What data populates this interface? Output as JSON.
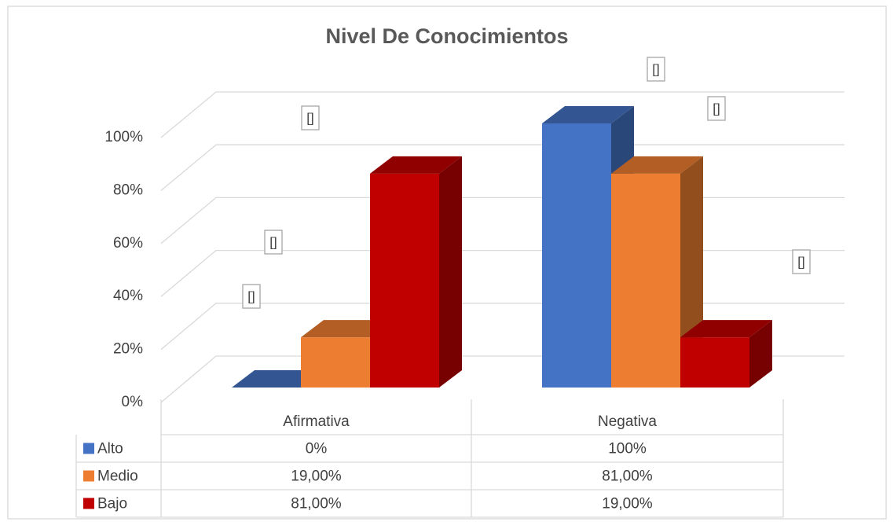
{
  "chart_data": {
    "type": "bar3d",
    "title": "Nivel De Conocimientos",
    "categories": [
      "Afirmativa",
      "Negativa"
    ],
    "series": [
      {
        "name": "Alto",
        "color": "#4472c4",
        "values": [
          0,
          100
        ],
        "value_labels": [
          "0%",
          "100%"
        ]
      },
      {
        "name": "Medio",
        "color": "#ed7d31",
        "values": [
          19,
          81
        ],
        "value_labels": [
          "19,00%",
          "81,00%"
        ]
      },
      {
        "name": "Bajo",
        "color": "#c00000",
        "values": [
          81,
          19
        ],
        "value_labels": [
          "81,00%",
          "19,00%"
        ]
      }
    ],
    "ylim": [
      0,
      100
    ],
    "yticks": [
      {
        "value": 0,
        "label": "0%"
      },
      {
        "value": 20,
        "label": "20%"
      },
      {
        "value": 40,
        "label": "40%"
      },
      {
        "value": 60,
        "label": "60%"
      },
      {
        "value": 80,
        "label": "80%"
      },
      {
        "value": 100,
        "label": "100%"
      }
    ],
    "grid": true,
    "annotations": [
      "[]",
      "[]",
      "[]",
      "[]",
      "[]",
      "[]"
    ]
  }
}
